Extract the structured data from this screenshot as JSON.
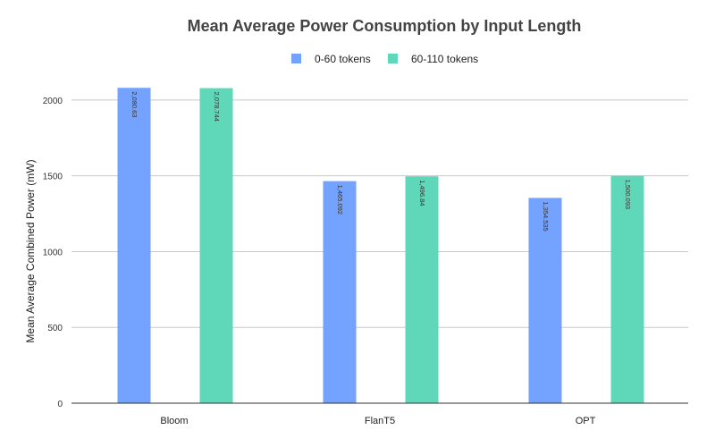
{
  "chart_data": {
    "type": "bar",
    "title": "Mean Average Power Consumption by Input Length",
    "xlabel": "",
    "ylabel": "Mean Average Combined Power (mW)",
    "ylim": [
      0,
      2200
    ],
    "yticks": [
      0,
      500,
      1000,
      1500,
      2000
    ],
    "grid": true,
    "legend_position": "top-center",
    "categories": [
      "Bloom",
      "FlanT5",
      "OPT"
    ],
    "series": [
      {
        "name": "0-60 tokens",
        "color": "#73a2ff",
        "values": [
          2080.63,
          1465.092,
          1354.535
        ],
        "labels": [
          "2,080.63",
          "1,465.092",
          "1,354.535"
        ]
      },
      {
        "name": "60-110 tokens",
        "color": "#5ed8b8",
        "values": [
          2078.744,
          1496.84,
          1500.093
        ],
        "labels": [
          "2,078.744",
          "1,496.84",
          "1,500.093"
        ]
      }
    ]
  }
}
